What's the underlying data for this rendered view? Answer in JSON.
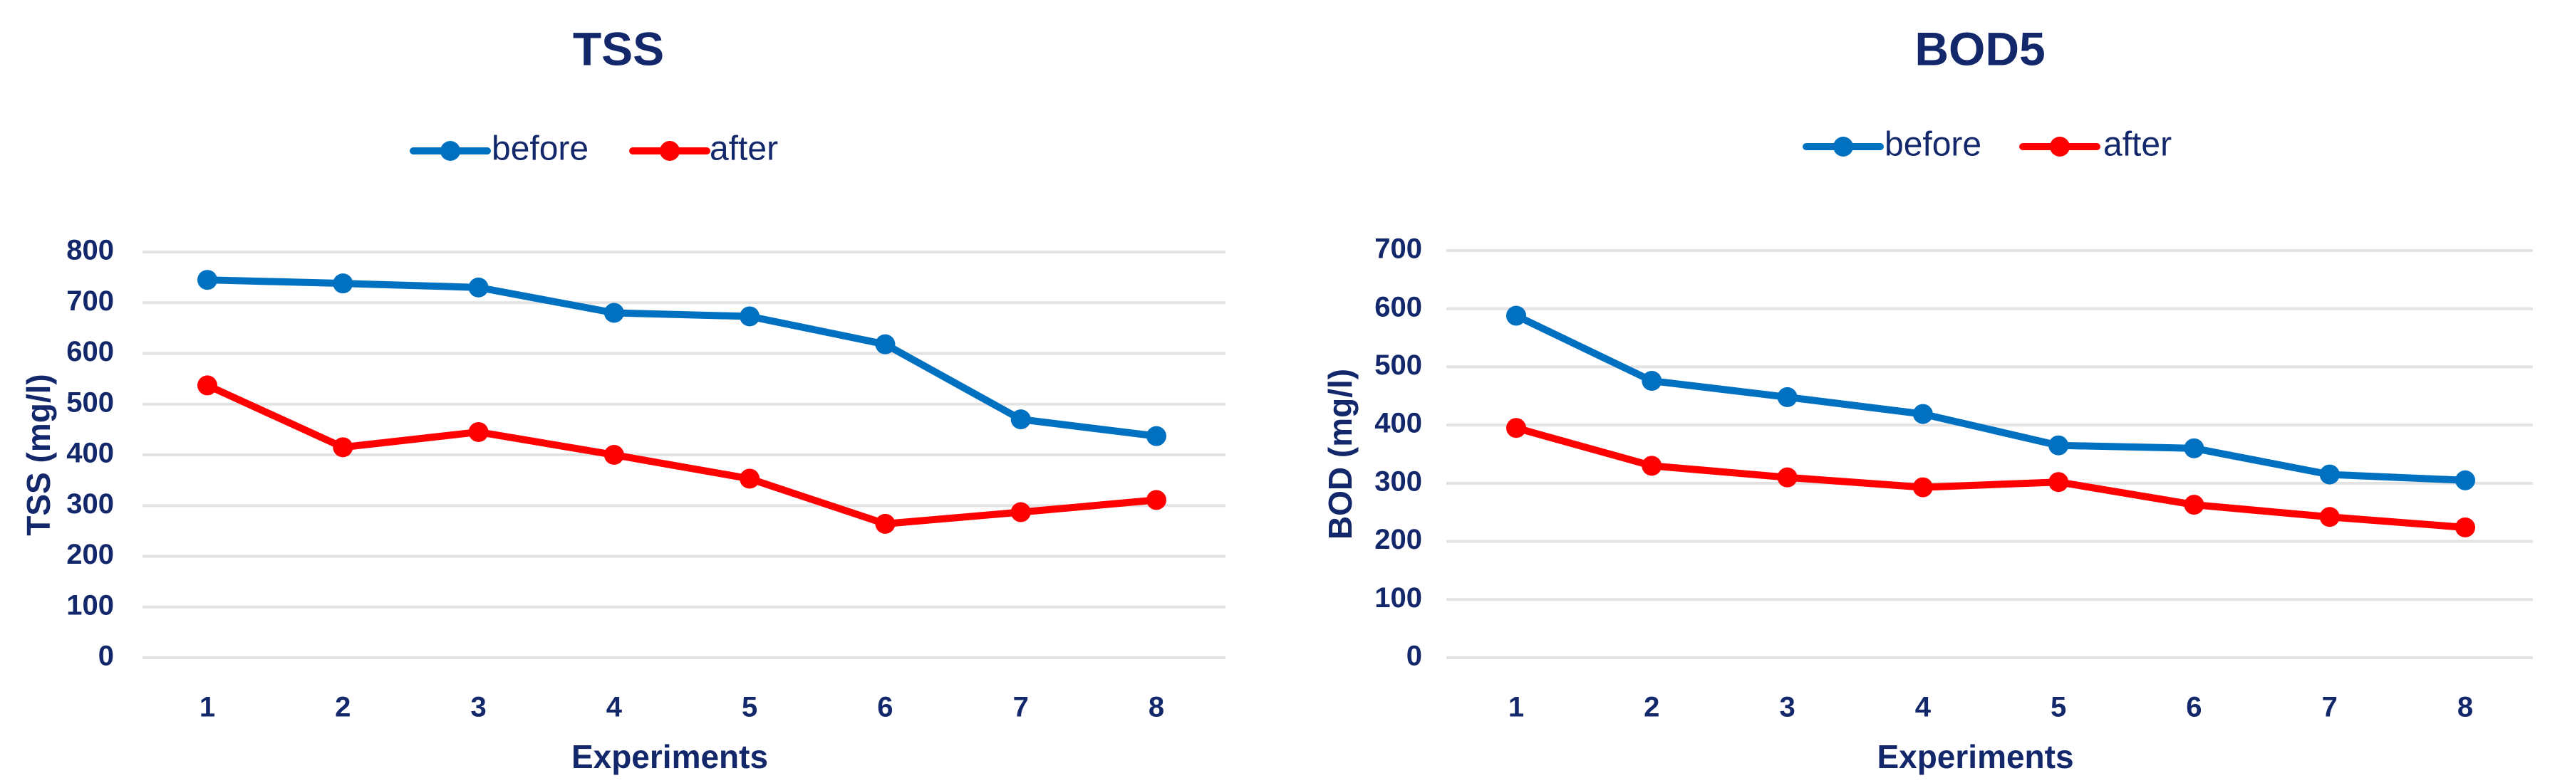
{
  "colors": {
    "before": "#0070c0",
    "after": "#ff0000",
    "text": "#13276b",
    "grid": "#e3e3e3"
  },
  "chart_data": [
    {
      "type": "line",
      "title": "TSS",
      "xlabel": "Experiments",
      "ylabel": "TSS (mg/l)",
      "categories": [
        "1",
        "2",
        "3",
        "4",
        "5",
        "6",
        "7",
        "8"
      ],
      "ylim": [
        0,
        800
      ],
      "yticks": [
        "0",
        "100",
        "200",
        "300",
        "400",
        "500",
        "600",
        "700",
        "800"
      ],
      "grid": true,
      "legend_position": "top-center",
      "series": [
        {
          "name": "before",
          "values": [
            745,
            738,
            730,
            680,
            673,
            618,
            470,
            437
          ]
        },
        {
          "name": "after",
          "values": [
            537,
            415,
            445,
            400,
            353,
            264,
            287,
            311
          ]
        }
      ]
    },
    {
      "type": "line",
      "title": "BOD5",
      "xlabel": "Experiments",
      "ylabel": "BOD (mg/l)",
      "categories": [
        "1",
        "2",
        "3",
        "4",
        "5",
        "6",
        "7",
        "8"
      ],
      "ylim": [
        0,
        700
      ],
      "yticks": [
        "0",
        "100",
        "200",
        "300",
        "400",
        "500",
        "600",
        "700"
      ],
      "grid": true,
      "legend_position": "top-center",
      "series": [
        {
          "name": "before",
          "values": [
            588,
            476,
            448,
            419,
            365,
            360,
            315,
            305
          ]
        },
        {
          "name": "after",
          "values": [
            395,
            330,
            310,
            293,
            302,
            263,
            242,
            224
          ]
        }
      ]
    }
  ]
}
